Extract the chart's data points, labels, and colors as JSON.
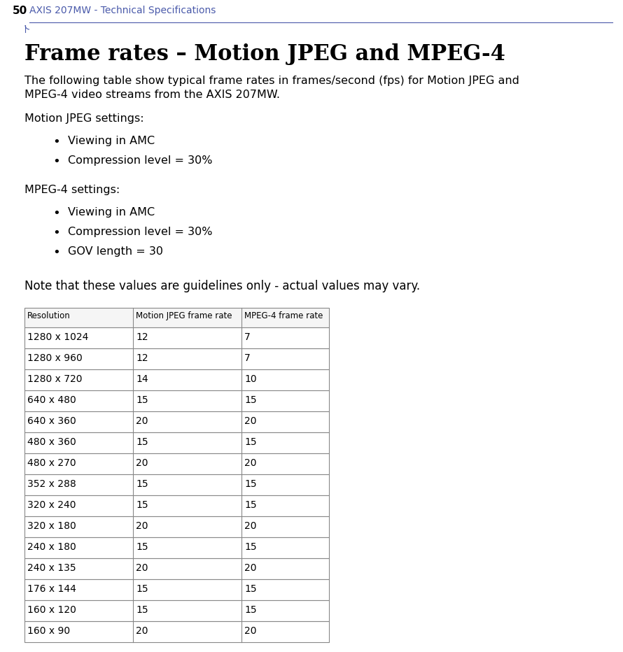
{
  "page_number": "50",
  "header_text": "AXIS 207MW - Technical Specifications",
  "header_color": "#4a5aaa",
  "title": "Frame rates – Motion JPEG and MPEG-4",
  "desc_line1": "The following table show typical frame rates in frames/second (fps) for Motion JPEG and",
  "desc_line2": "MPEG-4 video streams from the AXIS 207MW.",
  "mjpeg_settings_label": "Motion JPEG settings:",
  "mjpeg_bullets": [
    "Viewing in AMC",
    "Compression level = 30%"
  ],
  "mpeg4_settings_label": "MPEG-4 settings:",
  "mpeg4_bullets": [
    "Viewing in AMC",
    "Compression level = 30%",
    "GOV length = 30"
  ],
  "note_text": "Note that these values are guidelines only - actual values may vary.",
  "table_headers": [
    "Resolution",
    "Motion JPEG frame rate",
    "MPEG-4 frame rate"
  ],
  "table_rows": [
    [
      "1280 x 1024",
      "12",
      "7"
    ],
    [
      "1280 x 960",
      "12",
      "7"
    ],
    [
      "1280 x 720",
      "14",
      "10"
    ],
    [
      "640 x 480",
      "15",
      "15"
    ],
    [
      "640 x 360",
      "20",
      "20"
    ],
    [
      "480 x 360",
      "15",
      "15"
    ],
    [
      "480 x 270",
      "20",
      "20"
    ],
    [
      "352 x 288",
      "15",
      "15"
    ],
    [
      "320 x 240",
      "15",
      "15"
    ],
    [
      "320 x 180",
      "20",
      "20"
    ],
    [
      "240 x 180",
      "15",
      "15"
    ],
    [
      "240 x 135",
      "20",
      "20"
    ],
    [
      "176 x 144",
      "15",
      "15"
    ],
    [
      "160 x 120",
      "15",
      "15"
    ],
    [
      "160 x 90",
      "20",
      "20"
    ]
  ],
  "bg_color": "#ffffff",
  "text_color": "#000000",
  "table_border_color": "#888888",
  "header_row_bg": "#f5f5f5"
}
